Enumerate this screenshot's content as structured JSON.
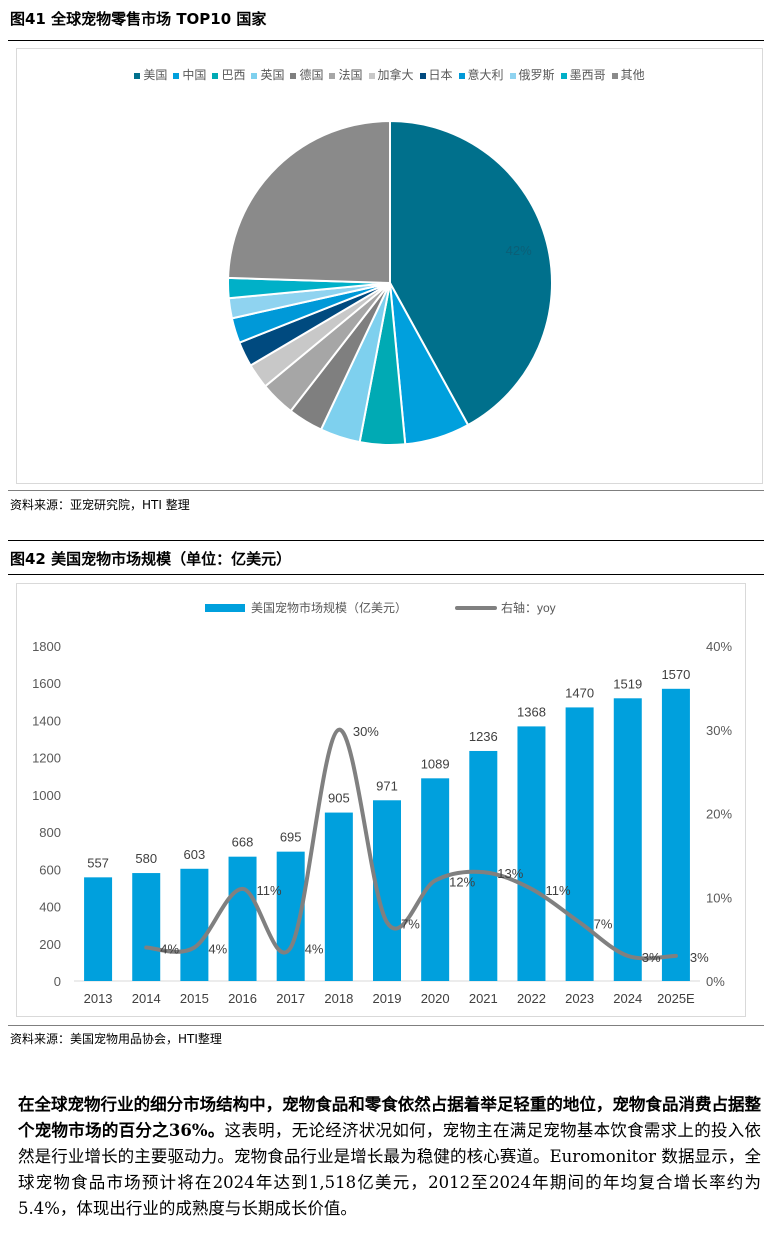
{
  "figure41": {
    "title": "图41  全球宠物零售市场 TOP10 国家",
    "source": "资料来源：亚宠研究院，HTI 整理",
    "chart_data": {
      "type": "pie",
      "title": "全球宠物零售市场 TOP10 国家",
      "categories": [
        "美国",
        "中国",
        "巴西",
        "英国",
        "德国",
        "法国",
        "加拿大",
        "日本",
        "意大利",
        "俄罗斯",
        "墨西哥",
        "其他"
      ],
      "values": [
        42,
        6.5,
        4.5,
        4,
        3.5,
        3.5,
        2.5,
        2.5,
        2.5,
        2,
        2,
        24.5
      ],
      "colors": [
        "#00708C",
        "#00A0DD",
        "#00AAB4",
        "#7ED0EE",
        "#7F7F7F",
        "#A6A6A6",
        "#C8C8C8",
        "#004A7F",
        "#0099D8",
        "#8FD3F0",
        "#00B0C8",
        "#8A8A8A"
      ],
      "data_labels": [
        "42%"
      ]
    }
  },
  "figure42": {
    "title": "图42  美国宠物市场规模（单位：亿美元）",
    "source": "资料来源：美国宠物用品协会，HTI整理",
    "chart_data": {
      "type": "bar",
      "title": "美国宠物市场规模（单位：亿美元）",
      "categories": [
        "2013",
        "2014",
        "2015",
        "2016",
        "2017",
        "2018",
        "2019",
        "2020",
        "2021",
        "2022",
        "2023",
        "2024",
        "2025E"
      ],
      "series": [
        {
          "name": "美国宠物市场规模（亿美元）",
          "type": "bar",
          "color": "#00A0DD",
          "values": [
            557,
            580,
            603,
            668,
            695,
            905,
            971,
            1089,
            1236,
            1368,
            1470,
            1519,
            1570
          ],
          "labels": [
            "557",
            "580",
            "603",
            "668",
            "695",
            "905",
            "971",
            "1089",
            "1236",
            "1368",
            "1470",
            "1519",
            "1570"
          ]
        },
        {
          "name": "右轴：yoy",
          "type": "line",
          "axis": "right",
          "color": "#808080",
          "x": [
            "2014",
            "2015",
            "2016",
            "2017",
            "2018",
            "2019",
            "2020",
            "2021",
            "2022",
            "2023",
            "2024",
            "2025E"
          ],
          "values": [
            4,
            4,
            11,
            4,
            30,
            7,
            12,
            13,
            11,
            7,
            3,
            3
          ],
          "labels": [
            "4%",
            "4%",
            "11%",
            "4%",
            "30%",
            "7%",
            "12%",
            "13%",
            "11%",
            "7%",
            "3%",
            "3%"
          ]
        }
      ],
      "ylim": [
        0,
        1800
      ],
      "yticks": [
        "0",
        "200",
        "400",
        "600",
        "800",
        "1000",
        "1200",
        "1400",
        "1600",
        "1800"
      ],
      "y2lim": [
        0,
        40
      ],
      "y2ticks": [
        "0%",
        "10%",
        "20%",
        "30%",
        "40%"
      ],
      "legend": "top"
    }
  },
  "paragraph": {
    "bold": "在全球宠物行业的细分市场结构中，宠物食品和零食依然占据着举足轻重的地位，宠物食品消费占据整个宠物市场的百分之36%。",
    "normal": "这表明，无论经济状况如何，宠物主在满足宠物基本饮食需求上的投入依然是行业增长的主要驱动力。宠物食品行业是增长最为稳健的核心赛道。Euromonitor 数据显示，全球宠物食品市场预计将在2024年达到1,518亿美元，2012至2024年期间的年均复合增长率约为 5.4%，体现出行业的成熟度与长期成长价值。"
  }
}
